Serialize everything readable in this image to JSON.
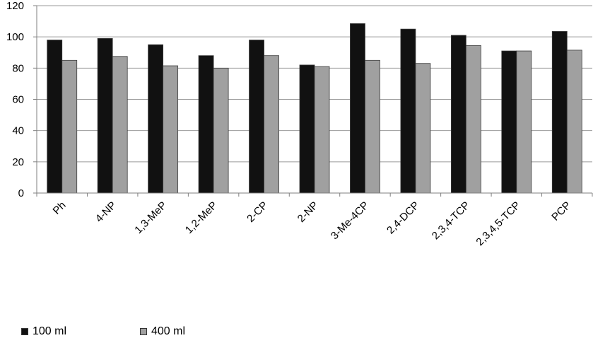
{
  "chart_data": {
    "type": "bar",
    "categories": [
      "Ph",
      "4-NP",
      "1,3-MeP",
      "1,2-MeP",
      "2-CP",
      "2-NP",
      "3-Me-4CP",
      "2,4-DCP",
      "2,3,4-TCP",
      "2,3,4,5-TCP",
      "PCP"
    ],
    "series": [
      {
        "name": "100 ml",
        "color": "#111111",
        "values": [
          98,
          99,
          95,
          88,
          98,
          82,
          108.5,
          105,
          101,
          91,
          103.5
        ]
      },
      {
        "name": "400 ml",
        "color": "#a0a0a0",
        "values": [
          85,
          87.5,
          81.5,
          80,
          88,
          81,
          85,
          83,
          94.5,
          91,
          91.5
        ]
      }
    ],
    "y_ticks": [
      "0",
      "20",
      "40",
      "60",
      "80",
      "100",
      "120"
    ],
    "ylim": [
      0,
      120
    ],
    "grid": true,
    "legend_position": "bottom-left"
  }
}
